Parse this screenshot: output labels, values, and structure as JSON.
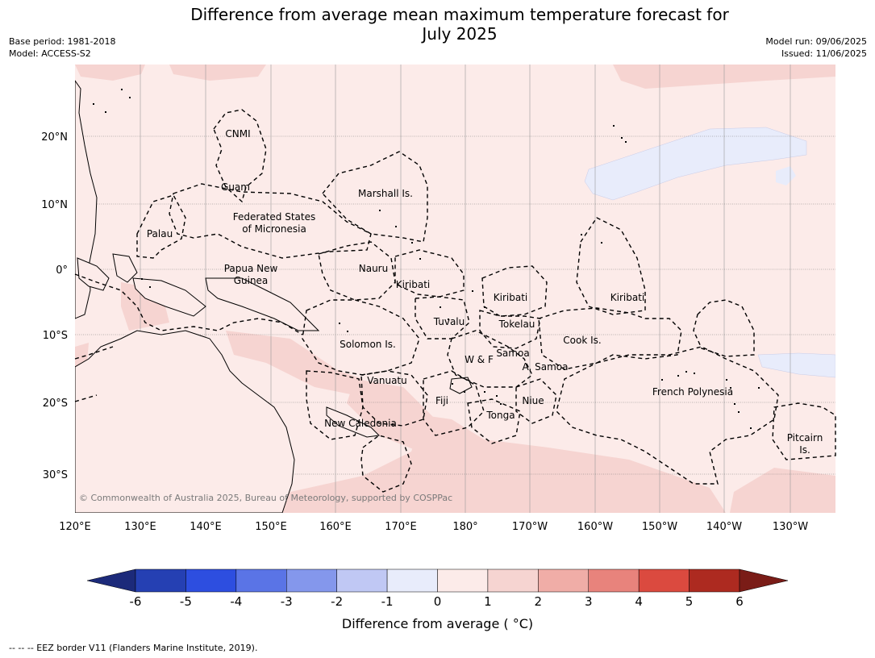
{
  "header": {
    "title_line1": "Difference from average mean maximum temperature forecast for",
    "title_line2": "July 2025",
    "base_period": "Base period: 1981-2018",
    "model": "Model: ACCESS-S2",
    "model_run": "Model run: 09/06/2025",
    "issued": "Issued: 11/06/2025"
  },
  "map": {
    "lon_ticks": [
      "120°E",
      "130°E",
      "140°E",
      "150°E",
      "160°E",
      "170°E",
      "180°",
      "170°W",
      "160°W",
      "150°W",
      "140°W",
      "130°W"
    ],
    "lat_ticks": [
      "20°N",
      "10°N",
      "0°",
      "10°S",
      "20°S",
      "30°S"
    ],
    "copyright": "© Commonwealth of Australia 2025, Bureau of Meteorology, supported by COSPPac",
    "regions": [
      {
        "name": "CNMI"
      },
      {
        "name": "Guam"
      },
      {
        "name": "Marshall Is."
      },
      {
        "name": "Federated States"
      },
      {
        "name": "of Micronesia"
      },
      {
        "name": "Palau"
      },
      {
        "name": "Papua New"
      },
      {
        "name": "Guinea"
      },
      {
        "name": "Nauru"
      },
      {
        "name": "Kiribati"
      },
      {
        "name": "Kiribati"
      },
      {
        "name": "Kiribati"
      },
      {
        "name": "Tuvalu"
      },
      {
        "name": "Tokelau"
      },
      {
        "name": "Cook Is."
      },
      {
        "name": "Solomon Is."
      },
      {
        "name": "Samoa"
      },
      {
        "name": "W & F"
      },
      {
        "name": "A. Samoa"
      },
      {
        "name": "Vanuatu"
      },
      {
        "name": "Fiji"
      },
      {
        "name": "Niue"
      },
      {
        "name": "French Polynesia"
      },
      {
        "name": "Tonga"
      },
      {
        "name": "New Caledonia"
      },
      {
        "name": "Pitcairn"
      },
      {
        "name": "Is."
      }
    ]
  },
  "colorbar": {
    "ticks": [
      "-6",
      "-5",
      "-4",
      "-3",
      "-2",
      "-1",
      "0",
      "1",
      "2",
      "3",
      "4",
      "5",
      "6"
    ],
    "colors": [
      "#2540b3",
      "#2d4ee0",
      "#5a74e6",
      "#8497ec",
      "#c0c8f4",
      "#e8ecfb",
      "#fcebe9",
      "#f6d4d1",
      "#f0ada7",
      "#e8837c",
      "#db4a3f",
      "#ad2a20"
    ],
    "under_color": "#1c2a7a",
    "over_color": "#7a1c17",
    "label": "Difference from average ( °C)"
  },
  "footnote": "--  --  -- EEZ border V11 (Flanders Marine Institute, 2019)."
}
